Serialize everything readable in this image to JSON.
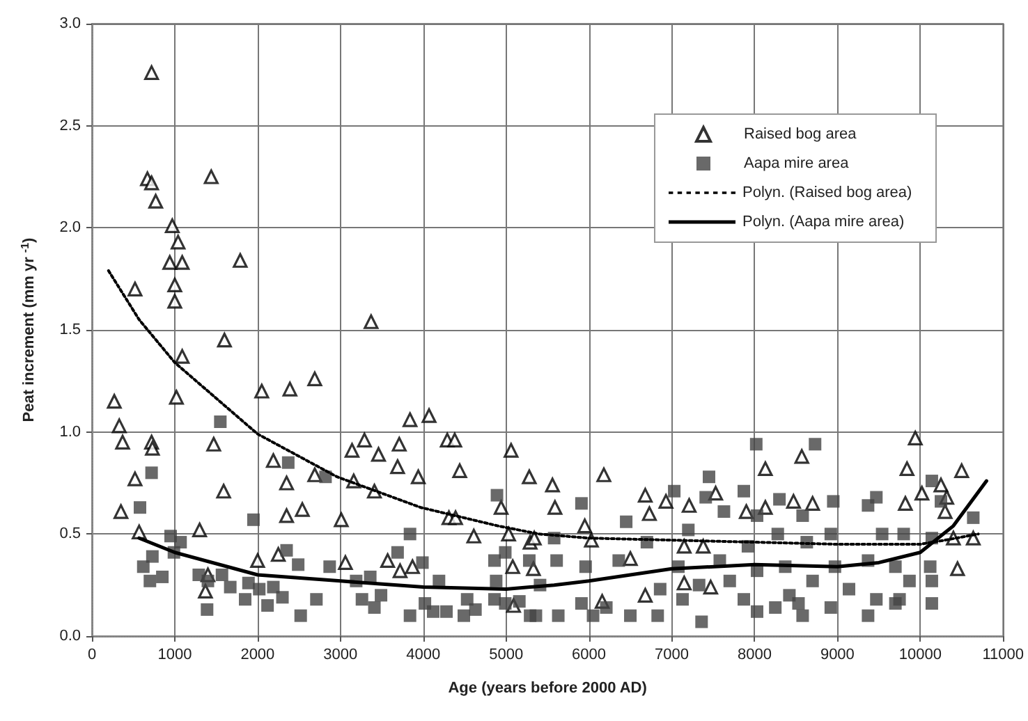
{
  "chart_data": {
    "type": "scatter",
    "xlabel": "Age (years before 2000 AD)",
    "ylabel": "Peat increment (mm yr $^{-1}$)",
    "xlim": [
      0,
      11000
    ],
    "xticks": [
      0,
      1000,
      2000,
      3000,
      4000,
      5000,
      6000,
      7000,
      8000,
      9000,
      10000,
      11000
    ],
    "ylim": [
      0,
      3
    ],
    "yticks": [
      {
        "value": 0,
        "label": "0.0"
      },
      {
        "value": 0.5,
        "label": "0.5"
      },
      {
        "value": 1,
        "label": "1.0"
      },
      {
        "value": 1.5,
        "label": "1.5"
      },
      {
        "value": 2,
        "label": "2.0"
      },
      {
        "value": 2.5,
        "label": "2.5"
      },
      {
        "value": 3,
        "label": "3.0"
      }
    ],
    "grid": true,
    "legend": "top right",
    "series": [
      {
        "name": "Raised bog area",
        "type": "scatter",
        "marker": "triangle",
        "color": "#000000",
        "x": [
          720,
          670,
          720,
          770,
          970,
          1040,
          940,
          1090,
          1000,
          1000,
          520,
          1440,
          1790,
          3370,
          1600,
          1090,
          270,
          330,
          370,
          720,
          730,
          520,
          350,
          570,
          1020,
          1470,
          1590,
          1300,
          2050,
          2390,
          2690,
          2190,
          2350,
          2350,
          2540,
          2690,
          2000,
          2250,
          1400,
          1370,
          3010,
          3060,
          3140,
          3290,
          3460,
          3160,
          3410,
          3710,
          3690,
          3840,
          4070,
          3940,
          4290,
          4380,
          4440,
          4310,
          4390,
          4610,
          5060,
          4940,
          5030,
          5280,
          5290,
          5080,
          3720,
          3870,
          3570,
          5090,
          5560,
          5590,
          6180,
          5950,
          6030,
          6680,
          6930,
          6730,
          7210,
          7530,
          6500,
          7150,
          7380,
          7150,
          7470,
          6680,
          6160,
          7900,
          8130,
          8130,
          8470,
          8570,
          8700,
          9940,
          9840,
          9820,
          10020,
          10250,
          10320,
          10500,
          10300,
          10400,
          10640,
          10450,
          5340,
          5330
        ],
        "values": [
          2.76,
          2.24,
          2.22,
          2.13,
          2.01,
          1.93,
          1.83,
          1.83,
          1.72,
          1.64,
          1.7,
          2.25,
          1.84,
          1.54,
          1.45,
          1.37,
          1.15,
          1.03,
          0.95,
          0.95,
          0.92,
          0.77,
          0.61,
          0.51,
          1.17,
          0.94,
          0.71,
          0.52,
          1.2,
          1.21,
          1.26,
          0.86,
          0.75,
          0.59,
          0.62,
          0.79,
          0.37,
          0.4,
          0.3,
          0.22,
          0.57,
          0.36,
          0.91,
          0.96,
          0.89,
          0.76,
          0.71,
          0.94,
          0.83,
          1.06,
          1.08,
          0.78,
          0.96,
          0.96,
          0.81,
          0.58,
          0.58,
          0.49,
          0.91,
          0.63,
          0.5,
          0.78,
          0.46,
          0.34,
          0.32,
          0.34,
          0.37,
          0.15,
          0.74,
          0.63,
          0.79,
          0.54,
          0.47,
          0.69,
          0.66,
          0.6,
          0.64,
          0.7,
          0.38,
          0.44,
          0.44,
          0.26,
          0.24,
          0.2,
          0.17,
          0.61,
          0.82,
          0.63,
          0.66,
          0.88,
          0.65,
          0.97,
          0.82,
          0.65,
          0.7,
          0.74,
          0.68,
          0.81,
          0.61,
          0.48,
          0.48,
          0.33,
          0.48,
          0.33
        ]
      },
      {
        "name": "Aapa mire area",
        "type": "scatter",
        "marker": "square",
        "color": "#444444",
        "x": [
          1550,
          720,
          580,
          950,
          1070,
          620,
          730,
          850,
          700,
          990,
          1290,
          1400,
          1570,
          1670,
          1390,
          1950,
          1890,
          1850,
          2020,
          2120,
          2190,
          2300,
          2350,
          2490,
          2520,
          2710,
          2870,
          2820,
          2370,
          3190,
          3260,
          3410,
          3490,
          3360,
          3690,
          3840,
          3990,
          3840,
          4190,
          4020,
          4120,
          4280,
          4530,
          4630,
          4490,
          4890,
          4860,
          4990,
          4880,
          4860,
          4990,
          5160,
          5280,
          5290,
          5910,
          5580,
          5610,
          5410,
          5360,
          5630,
          5960,
          5910,
          6050,
          6360,
          6450,
          6210,
          6500,
          6700,
          6860,
          6830,
          7030,
          7200,
          7080,
          7450,
          7410,
          7630,
          7580,
          7700,
          7330,
          7360,
          7130,
          7870,
          8030,
          7920,
          8030,
          7870,
          8030,
          8020,
          8730,
          8300,
          8280,
          8370,
          8420,
          8250,
          8580,
          8630,
          8700,
          8530,
          8580,
          8950,
          8920,
          8970,
          8920,
          9140,
          9370,
          9470,
          9540,
          9370,
          9700,
          9470,
          9370,
          9700,
          9800,
          9870,
          9750,
          10140,
          10250,
          10140,
          10120,
          10140,
          10140,
          10640
        ],
        "values": [
          1.05,
          0.8,
          0.63,
          0.49,
          0.46,
          0.34,
          0.39,
          0.29,
          0.27,
          0.41,
          0.3,
          0.27,
          0.3,
          0.24,
          0.13,
          0.57,
          0.26,
          0.18,
          0.23,
          0.15,
          0.24,
          0.19,
          0.42,
          0.35,
          0.1,
          0.18,
          0.34,
          0.78,
          0.85,
          0.27,
          0.18,
          0.14,
          0.2,
          0.29,
          0.41,
          0.5,
          0.36,
          0.1,
          0.27,
          0.16,
          0.12,
          0.12,
          0.18,
          0.13,
          0.1,
          0.69,
          0.37,
          0.41,
          0.27,
          0.18,
          0.16,
          0.17,
          0.37,
          0.1,
          0.65,
          0.48,
          0.37,
          0.25,
          0.1,
          0.1,
          0.34,
          0.16,
          0.1,
          0.37,
          0.56,
          0.14,
          0.1,
          0.46,
          0.23,
          0.1,
          0.71,
          0.52,
          0.34,
          0.78,
          0.68,
          0.61,
          0.37,
          0.27,
          0.25,
          0.07,
          0.18,
          0.71,
          0.59,
          0.44,
          0.32,
          0.18,
          0.12,
          0.94,
          0.94,
          0.67,
          0.5,
          0.34,
          0.2,
          0.14,
          0.59,
          0.46,
          0.27,
          0.16,
          0.1,
          0.66,
          0.5,
          0.34,
          0.14,
          0.23,
          0.64,
          0.68,
          0.5,
          0.37,
          0.34,
          0.18,
          0.1,
          0.16,
          0.5,
          0.27,
          0.18,
          0.76,
          0.66,
          0.48,
          0.34,
          0.27,
          0.16,
          0.58
        ]
      },
      {
        "name": "Polyn. (Raised bog area)",
        "type": "line",
        "marker": "none",
        "line_style": "dotted",
        "color": "#000000",
        "x": [
          200,
          570,
          1000,
          2000,
          2960,
          3970,
          4900,
          5400,
          6000,
          7000,
          8000,
          9000,
          10000,
          10300,
          10700
        ],
        "values": [
          1.79,
          1.55,
          1.34,
          0.99,
          0.78,
          0.63,
          0.54,
          0.5,
          0.48,
          0.47,
          0.46,
          0.45,
          0.45,
          0.47,
          0.5
        ]
      },
      {
        "name": "Polyn. (Aapa mire area)",
        "type": "line",
        "marker": "none",
        "line_style": "solid",
        "color": "#000000",
        "x": [
          570,
          1000,
          2000,
          3000,
          4000,
          5000,
          5580,
          6000,
          7000,
          8000,
          9000,
          9500,
          10000,
          10400,
          10800
        ],
        "values": [
          0.48,
          0.41,
          0.3,
          0.27,
          0.24,
          0.23,
          0.25,
          0.27,
          0.33,
          0.35,
          0.34,
          0.36,
          0.41,
          0.54,
          0.76
        ]
      }
    ]
  }
}
